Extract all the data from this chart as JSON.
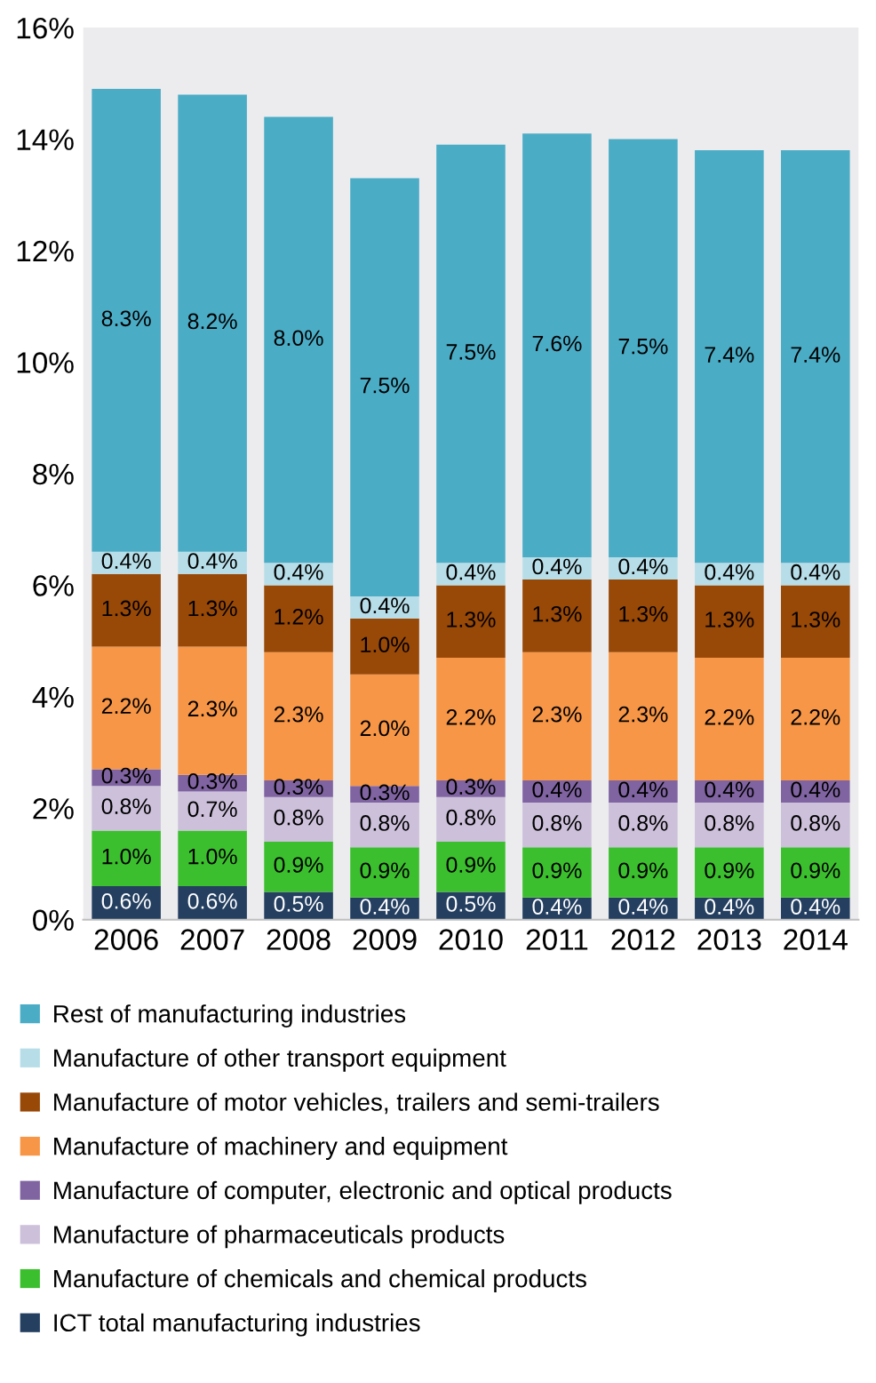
{
  "chart_data": {
    "type": "bar",
    "stacked": true,
    "legend": "bottom",
    "grid": false,
    "categories": [
      "2006",
      "2007",
      "2008",
      "2009",
      "2010",
      "2011",
      "2012",
      "2013",
      "2014"
    ],
    "ylim": [
      0,
      16
    ],
    "yticks": [
      {
        "value": 0,
        "label": "0%"
      },
      {
        "value": 2,
        "label": "2%"
      },
      {
        "value": 4,
        "label": "4%"
      },
      {
        "value": 6,
        "label": "6%"
      },
      {
        "value": 8,
        "label": "8%"
      },
      {
        "value": 10,
        "label": "10%"
      },
      {
        "value": 12,
        "label": "12%"
      },
      {
        "value": 14,
        "label": "14%"
      },
      {
        "value": 16,
        "label": "16%"
      }
    ],
    "series": [
      {
        "name": "ICT total manufacturing industries",
        "color": "#243f60",
        "values": [
          0.6,
          0.6,
          0.5,
          0.4,
          0.5,
          0.4,
          0.4,
          0.4,
          0.4
        ],
        "value_labels": [
          "0.6%",
          "0.6%",
          "0.5%",
          "0.4%",
          "0.5%",
          "0.4%",
          "0.4%",
          "0.4%",
          "0.4%"
        ]
      },
      {
        "name": "Manufacture of chemicals and chemical products",
        "color": "#3cbf2e",
        "values": [
          1.0,
          1.0,
          0.9,
          0.9,
          0.9,
          0.9,
          0.9,
          0.9,
          0.9
        ],
        "value_labels": [
          "1.0%",
          "1.0%",
          "0.9%",
          "0.9%",
          "0.9%",
          "0.9%",
          "0.9%",
          "0.9%",
          "0.9%"
        ]
      },
      {
        "name": "Manufacture of pharmaceuticals products",
        "color": "#ccc0da",
        "values": [
          0.8,
          0.7,
          0.8,
          0.8,
          0.8,
          0.8,
          0.8,
          0.8,
          0.8
        ],
        "value_labels": [
          "0.8%",
          "0.7%",
          "0.8%",
          "0.8%",
          "0.8%",
          "0.8%",
          "0.8%",
          "0.8%",
          "0.8%"
        ]
      },
      {
        "name": "Manufacture of computer, electronic and optical products",
        "color": "#8064a2",
        "values": [
          0.3,
          0.3,
          0.3,
          0.3,
          0.3,
          0.4,
          0.4,
          0.4,
          0.4
        ],
        "value_labels": [
          "0.3%",
          "0.3%",
          "0.3%",
          "0.3%",
          "0.3%",
          "0.4%",
          "0.4%",
          "0.4%",
          "0.4%"
        ]
      },
      {
        "name": "Manufacture of machinery and equipment",
        "color": "#f79646",
        "values": [
          2.2,
          2.3,
          2.3,
          2.0,
          2.2,
          2.3,
          2.3,
          2.2,
          2.2
        ],
        "value_labels": [
          "2.2%",
          "2.3%",
          "2.3%",
          "2.0%",
          "2.2%",
          "2.3%",
          "2.3%",
          "2.2%",
          "2.2%"
        ]
      },
      {
        "name": "Manufacture of motor vehicles, trailers and semi-trailers",
        "color": "#984807",
        "values": [
          1.3,
          1.3,
          1.2,
          1.0,
          1.3,
          1.3,
          1.3,
          1.3,
          1.3
        ],
        "value_labels": [
          "1.3%",
          "1.3%",
          "1.2%",
          "1.0%",
          "1.3%",
          "1.3%",
          "1.3%",
          "1.3%",
          "1.3%"
        ]
      },
      {
        "name": "Manufacture of other transport equipment",
        "color": "#b7dee8",
        "values": [
          0.4,
          0.4,
          0.4,
          0.4,
          0.4,
          0.4,
          0.4,
          0.4,
          0.4
        ],
        "value_labels": [
          "0.4%",
          "0.4%",
          "0.4%",
          "0.4%",
          "0.4%",
          "0.4%",
          "0.4%",
          "0.4%",
          "0.4%"
        ]
      },
      {
        "name": "Rest of manufacturing industries",
        "color": "#4bacc6",
        "values": [
          8.3,
          8.2,
          8.0,
          7.5,
          7.5,
          7.6,
          7.5,
          7.4,
          7.4
        ],
        "value_labels": [
          "8.3%",
          "8.2%",
          "8.0%",
          "7.5%",
          "7.5%",
          "7.6%",
          "7.5%",
          "7.4%",
          "7.4%"
        ]
      }
    ]
  }
}
